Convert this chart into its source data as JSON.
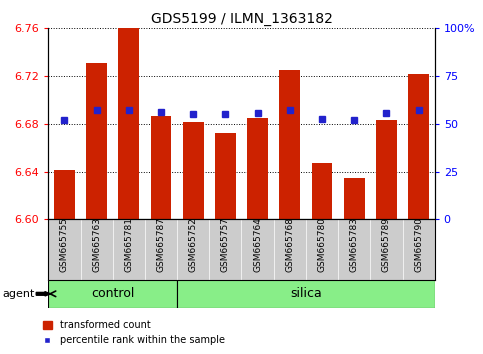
{
  "title": "GDS5199 / ILMN_1363182",
  "samples": [
    "GSM665755",
    "GSM665763",
    "GSM665781",
    "GSM665787",
    "GSM665752",
    "GSM665757",
    "GSM665764",
    "GSM665768",
    "GSM665780",
    "GSM665783",
    "GSM665789",
    "GSM665790"
  ],
  "groups": [
    "control",
    "control",
    "control",
    "control",
    "silica",
    "silica",
    "silica",
    "silica",
    "silica",
    "silica",
    "silica",
    "silica"
  ],
  "red_values": [
    6.641,
    6.731,
    6.76,
    6.687,
    6.682,
    6.672,
    6.685,
    6.725,
    6.647,
    6.635,
    6.683,
    6.722
  ],
  "blue_values": [
    6.683,
    6.692,
    6.692,
    6.69,
    6.688,
    6.688,
    6.689,
    6.692,
    6.684,
    6.683,
    6.689,
    6.692
  ],
  "ylim_left": [
    6.6,
    6.76
  ],
  "ylim_right": [
    0,
    100
  ],
  "yticks_left": [
    6.6,
    6.64,
    6.68,
    6.72,
    6.76
  ],
  "yticks_right": [
    0,
    25,
    50,
    75,
    100
  ],
  "bar_color": "#cc2200",
  "dot_color": "#2222cc",
  "group_bg": "#88ee88",
  "sample_bg": "#cccccc",
  "bar_bottom": 6.6,
  "bar_width": 0.65,
  "control_count": 4,
  "n_samples": 12
}
